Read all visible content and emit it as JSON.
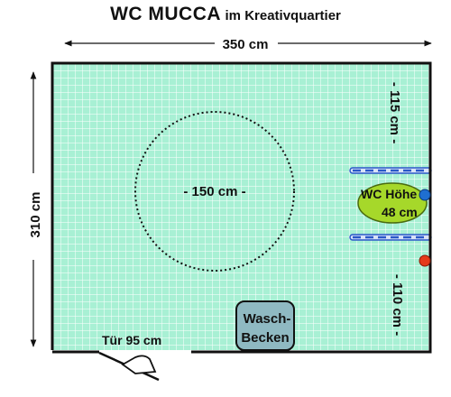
{
  "title": {
    "main": "WC MUCCA",
    "sub": "im Kreativquartier"
  },
  "dimensions": {
    "width": "350 cm",
    "height": "310 cm",
    "turning_circle": "- 150 cm -",
    "wall_top_right": "- 115 cm -",
    "wall_bottom_right": "- 110 cm -",
    "door": "Tür 95 cm"
  },
  "fixtures": {
    "wc_line1": "WC Höhe",
    "wc_line2": "48 cm",
    "sink_line1": "Wasch-",
    "sink_line2": "Becken"
  },
  "colors": {
    "floor": "#a8f0d4",
    "tile_grid": "#ffffff",
    "walls": "#111111",
    "wc": "#a6d82a",
    "sink": "#8fb9c2",
    "grab_bar": "#2a58c8",
    "button_blue": "#1f6fd0",
    "button_red": "#e53a1a"
  }
}
